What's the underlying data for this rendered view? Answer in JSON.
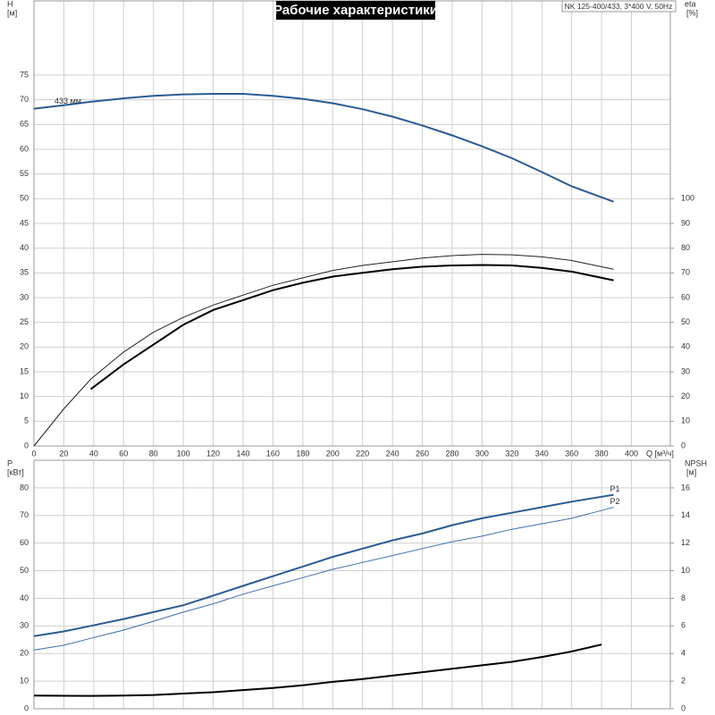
{
  "chart_data": [
    {
      "type": "line",
      "title": "Рабочие характеристики",
      "subtitle": "NK 125-400/433, 3*400 V, 50Hz",
      "ylabel": "H",
      "yunit": "[м]",
      "y2label": "eta",
      "y2unit": "[%]",
      "xlabel": "Q [м³/ч]",
      "x": [
        0,
        20,
        38,
        60,
        80,
        100,
        120,
        140,
        160,
        180,
        200,
        220,
        240,
        260,
        280,
        300,
        320,
        340,
        360,
        388
      ],
      "xlim": [
        0,
        426
      ],
      "xticks": [
        0,
        20,
        40,
        60,
        80,
        100,
        120,
        140,
        160,
        180,
        200,
        220,
        240,
        260,
        280,
        300,
        320,
        340,
        360,
        380,
        400
      ],
      "ylim": [
        0,
        90
      ],
      "yticks": [
        0,
        5,
        10,
        15,
        20,
        25,
        30,
        35,
        40,
        45,
        50,
        55,
        60,
        65,
        70,
        75
      ],
      "y2lim": [
        0,
        180
      ],
      "y2ticks": [
        0,
        10,
        20,
        30,
        40,
        50,
        60,
        70,
        80,
        90,
        100
      ],
      "grid": true,
      "series": [
        {
          "name": "433 мм",
          "color": "#2a5b94",
          "width": 2,
          "values": [
            68.2,
            68.9,
            69.6,
            70.3,
            70.8,
            71.1,
            71.2,
            71.2,
            70.8,
            70.2,
            69.3,
            68.1,
            66.6,
            64.8,
            62.8,
            60.6,
            58.2,
            55.4,
            52.5,
            49.4
          ]
        },
        {
          "color": "#222222",
          "width": 1,
          "axis": "y2",
          "values": [
            0,
            15,
            27,
            38,
            46,
            52,
            57,
            61,
            65,
            68,
            71,
            73,
            74.5,
            76,
            77,
            77.5,
            77.3,
            76.5,
            75,
            71.5
          ]
        },
        {
          "color": "#000000",
          "width": 2,
          "axis": "y2",
          "values": [
            null,
            null,
            23,
            33,
            41,
            49,
            55,
            59,
            63,
            66,
            68.5,
            70,
            71.5,
            72.5,
            73,
            73.2,
            73,
            72,
            70.5,
            67
          ]
        }
      ]
    },
    {
      "type": "line",
      "ylabel": "P",
      "yunit": "[кВт]",
      "y2label": "NPSH",
      "y2unit": "[м]",
      "x": [
        0,
        20,
        38,
        60,
        80,
        100,
        120,
        140,
        160,
        180,
        200,
        220,
        240,
        260,
        280,
        300,
        320,
        340,
        360,
        380,
        388
      ],
      "xlim": [
        0,
        426
      ],
      "xticks": [
        0,
        20,
        40,
        60,
        80,
        100,
        120,
        140,
        160,
        180,
        200,
        220,
        240,
        260,
        280,
        300,
        320,
        340,
        360,
        380,
        400
      ],
      "ylim": [
        0,
        90
      ],
      "yticks": [
        0,
        10,
        20,
        30,
        40,
        50,
        60,
        70,
        80
      ],
      "y2lim": [
        0,
        18
      ],
      "y2ticks": [
        0,
        2,
        4,
        6,
        8,
        10,
        12,
        14,
        16
      ],
      "grid": true,
      "series": [
        {
          "name": "P1",
          "color": "#2a5b94",
          "width": 2,
          "values": [
            26.3,
            28,
            30,
            32.5,
            35,
            37.5,
            41,
            44.5,
            48,
            51.5,
            55,
            58,
            61,
            63.5,
            66.5,
            69,
            71,
            73,
            75,
            76.8,
            77.5
          ]
        },
        {
          "name": "P2",
          "color": "#3f6fae",
          "width": 1,
          "values": [
            21.3,
            23,
            25.5,
            28.5,
            31.7,
            35,
            38,
            41.5,
            44.5,
            47.5,
            50.5,
            53,
            55.5,
            58,
            60.5,
            62.5,
            65,
            67,
            69,
            71.8,
            73
          ]
        },
        {
          "color": "#000000",
          "width": 2,
          "axis": "y2",
          "values": [
            0.95,
            0.94,
            0.93,
            0.95,
            1.0,
            1.1,
            1.2,
            1.35,
            1.5,
            1.7,
            1.95,
            2.15,
            2.4,
            2.65,
            2.9,
            3.15,
            3.4,
            3.75,
            4.15,
            4.65,
            null
          ]
        }
      ]
    }
  ]
}
